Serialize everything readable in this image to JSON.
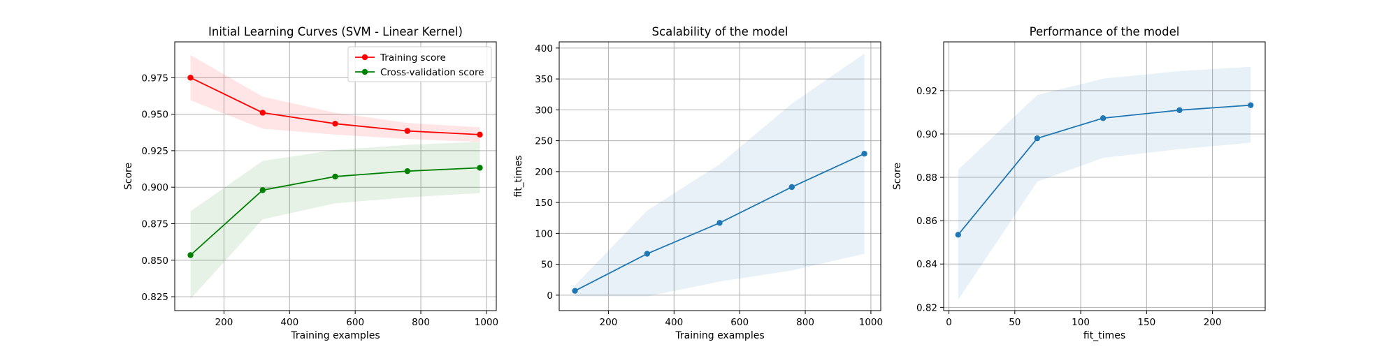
{
  "chart_data": [
    {
      "type": "line",
      "title": "Initial Learning Curves (SVM - Linear Kernel)",
      "xlabel": "Training examples",
      "ylabel": "Score",
      "xlim": [
        50,
        1030
      ],
      "ylim": [
        0.8155,
        0.9995
      ],
      "xticks": [
        200,
        400,
        600,
        800,
        1000
      ],
      "yticks": [
        0.825,
        0.85,
        0.875,
        0.9,
        0.925,
        0.95,
        0.975
      ],
      "yticks_label": [
        "0.825",
        "0.850",
        "0.875",
        "0.900",
        "0.925",
        "0.950",
        "0.975"
      ],
      "grid": true,
      "legend": "upper right",
      "x": [
        98,
        318,
        539,
        759,
        980
      ],
      "series": [
        {
          "name": "Training score",
          "color": "#ff0000",
          "band_color": "#ff0000",
          "values": [
            0.975,
            0.951,
            0.9435,
            0.9385,
            0.936
          ],
          "lower": [
            0.9595,
            0.94,
            0.936,
            0.933,
            0.931
          ],
          "upper": [
            0.9905,
            0.962,
            0.951,
            0.944,
            0.941
          ]
        },
        {
          "name": "Cross-validation score",
          "color": "#008000",
          "band_color": "#008000",
          "values": [
            0.8535,
            0.898,
            0.9073,
            0.911,
            0.9133
          ],
          "lower": [
            0.8235,
            0.878,
            0.889,
            0.893,
            0.896
          ],
          "upper": [
            0.8835,
            0.918,
            0.9255,
            0.929,
            0.931
          ]
        }
      ]
    },
    {
      "type": "line",
      "title": "Scalability of the model",
      "xlabel": "Training examples",
      "ylabel": "fit_times",
      "xlim": [
        50,
        1030
      ],
      "ylim": [
        -25,
        410
      ],
      "xticks": [
        200,
        400,
        600,
        800,
        1000
      ],
      "yticks": [
        0,
        50,
        100,
        150,
        200,
        250,
        300,
        350,
        400
      ],
      "yticks_label": [
        "0",
        "50",
        "100",
        "150",
        "200",
        "250",
        "300",
        "350",
        "400"
      ],
      "grid": true,
      "x": [
        98,
        318,
        539,
        759,
        980
      ],
      "series": [
        {
          "color": "#1f77b4",
          "band_color": "#1f77b4",
          "values": [
            7,
            67,
            117,
            175,
            229
          ],
          "lower": [
            -2,
            -2,
            22,
            40,
            67
          ],
          "upper": [
            16,
            137,
            212,
            310,
            391
          ]
        }
      ]
    },
    {
      "type": "line",
      "title": "Performance of the model",
      "xlabel": "fit_times",
      "ylabel": "Score",
      "xlim": [
        -4,
        240
      ],
      "ylim": [
        0.8185,
        0.9425
      ],
      "xticks": [
        0,
        50,
        100,
        150,
        200
      ],
      "yticks": [
        0.82,
        0.84,
        0.86,
        0.88,
        0.9,
        0.92
      ],
      "yticks_label": [
        "0.82",
        "0.84",
        "0.86",
        "0.88",
        "0.90",
        "0.92"
      ],
      "grid": true,
      "x": [
        7,
        67,
        117,
        175,
        229
      ],
      "series": [
        {
          "color": "#1f77b4",
          "band_color": "#1f77b4",
          "values": [
            0.8535,
            0.898,
            0.9073,
            0.911,
            0.9133
          ],
          "lower": [
            0.8235,
            0.878,
            0.889,
            0.893,
            0.896
          ],
          "upper": [
            0.8835,
            0.918,
            0.9255,
            0.929,
            0.931
          ]
        }
      ]
    }
  ]
}
